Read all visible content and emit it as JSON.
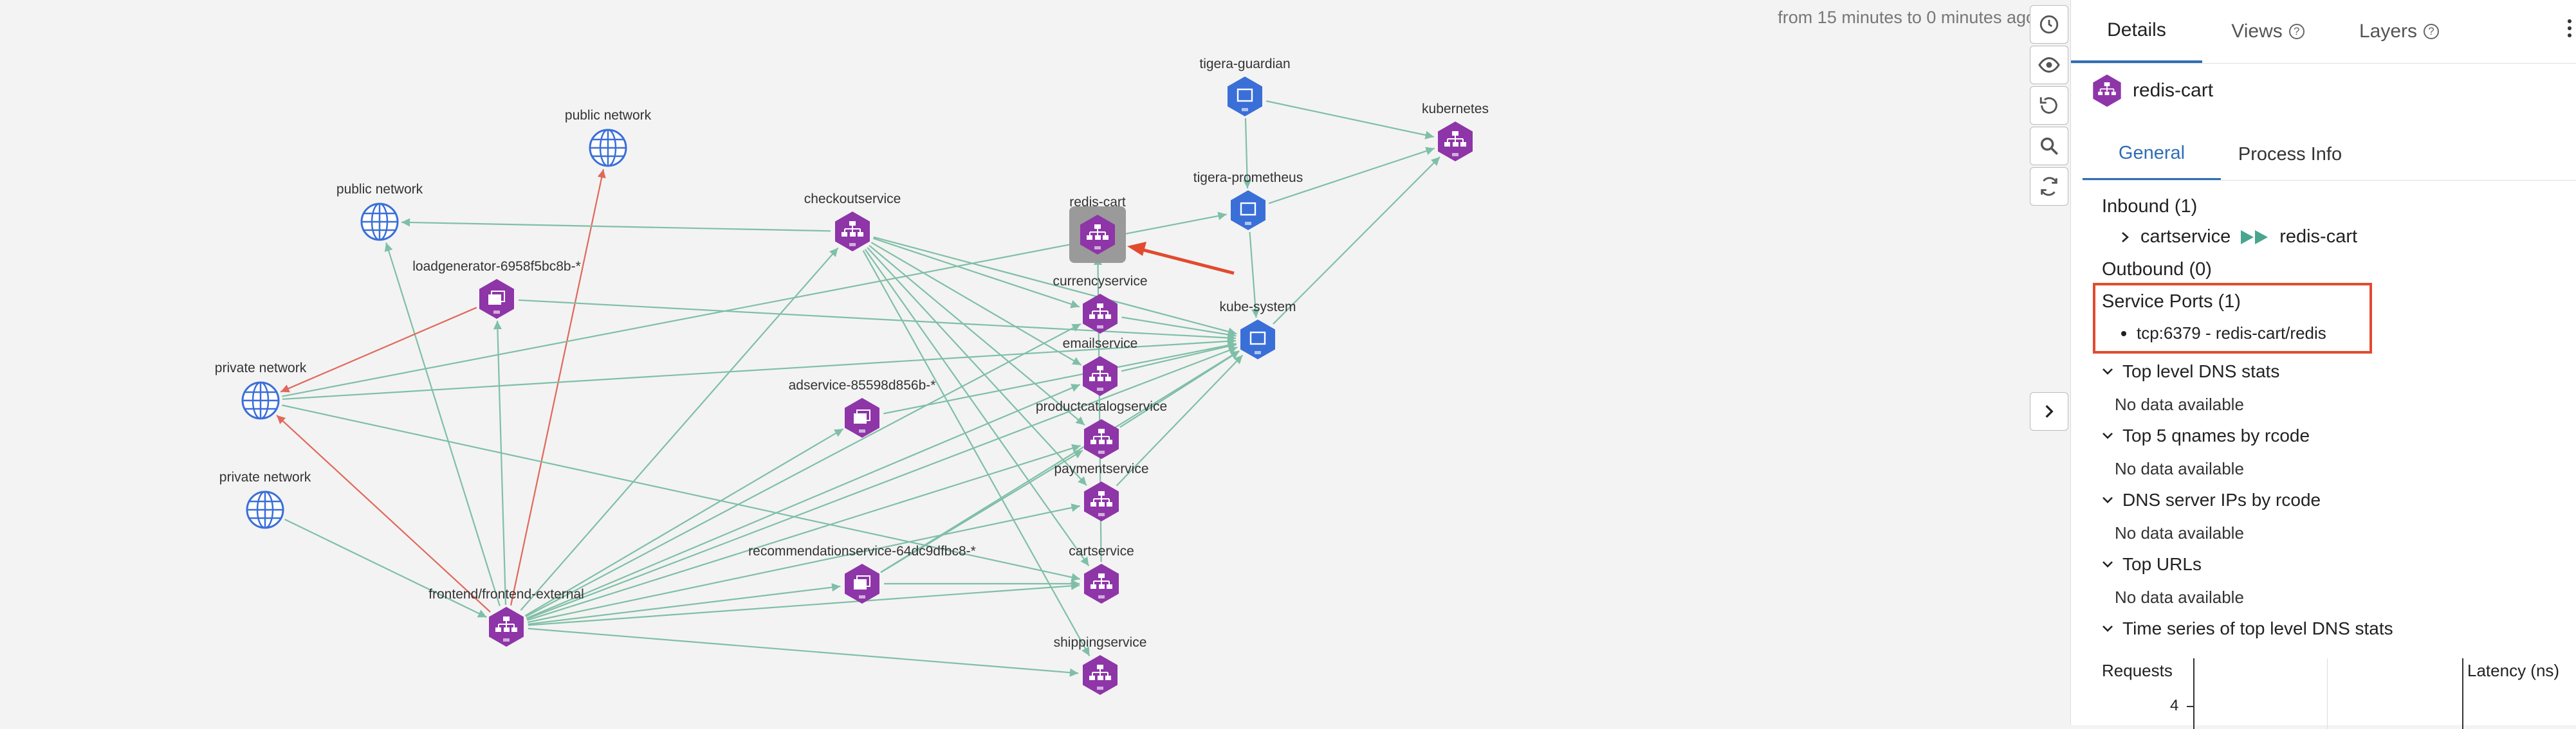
{
  "graph": {
    "time_range": "from 15 minutes to 0 minutes ago",
    "nodes": [
      {
        "label": "public network",
        "kind": "network"
      },
      {
        "label": "public network",
        "kind": "network"
      },
      {
        "label": "private network",
        "kind": "network"
      },
      {
        "label": "private network",
        "kind": "network"
      },
      {
        "label": "loadgenerator-6958f5bc8b-*",
        "kind": "replicaset"
      },
      {
        "label": "checkoutservice",
        "kind": "service"
      },
      {
        "label": "redis-cart",
        "kind": "service"
      },
      {
        "label": "currencyservice",
        "kind": "service"
      },
      {
        "label": "emailservice",
        "kind": "service"
      },
      {
        "label": "adservice-85598d856b-*",
        "kind": "replicaset"
      },
      {
        "label": "productcatalogservice",
        "kind": "service"
      },
      {
        "label": "paymentservice",
        "kind": "service"
      },
      {
        "label": "recommendationservice-64dc9dfbc8-*",
        "kind": "replicaset"
      },
      {
        "label": "cartservice",
        "kind": "service"
      },
      {
        "label": "frontend/frontend-external",
        "kind": "service"
      },
      {
        "label": "shippingservice",
        "kind": "service"
      },
      {
        "label": "tigera-guardian",
        "kind": "namespace"
      },
      {
        "label": "tigera-prometheus",
        "kind": "namespace"
      },
      {
        "label": "kube-system",
        "kind": "namespace"
      },
      {
        "label": "kubernetes",
        "kind": "service"
      }
    ]
  },
  "colors": {
    "service": "#8e35a8",
    "namespace": "#3a6fd8",
    "network": "#3a6fd8",
    "edge": "#7fbfa7",
    "edge_red": "#e0685a",
    "accent": "#2f6db5",
    "highlight_box": "#e24a2e"
  },
  "toolbar": {
    "icons": [
      "clock-icon",
      "eye-icon",
      "undo-icon",
      "search-icon",
      "refresh-icon"
    ]
  },
  "panel": {
    "tabs": [
      {
        "label": "Details"
      },
      {
        "label": "Views"
      },
      {
        "label": "Layers"
      }
    ],
    "entity_name": "redis-cart",
    "subtabs": [
      {
        "label": "General"
      },
      {
        "label": "Process Info"
      }
    ],
    "inbound_title": "Inbound (1)",
    "inbound_source": "cartservice",
    "inbound_target": "redis-cart",
    "outbound_title": "Outbound (0)",
    "service_ports_title": "Service Ports (1)",
    "service_port": "tcp:6379 - redis-cart/redis",
    "sections": [
      {
        "title": "Top level DNS stats",
        "body": "No data available"
      },
      {
        "title": "Top 5 qnames by rcode",
        "body": "No data available"
      },
      {
        "title": "DNS server IPs by rcode",
        "body": "No data available"
      },
      {
        "title": "Top URLs",
        "body": "No data available"
      },
      {
        "title": "Time series of top level DNS stats",
        "body": ""
      }
    ],
    "chart_left_label": "Requests",
    "chart_right_label": "Latency (ns)",
    "chart_tick": "4"
  }
}
